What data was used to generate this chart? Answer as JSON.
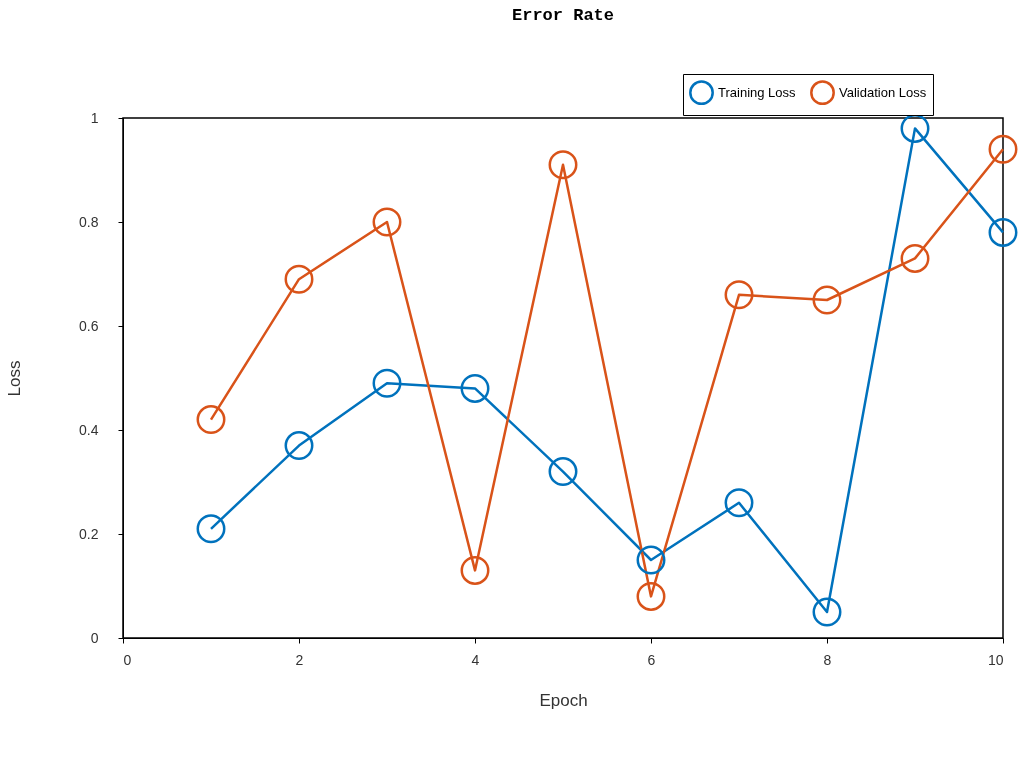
{
  "chart_data": {
    "type": "line",
    "title": "Error Rate",
    "xlabel": "Epoch",
    "ylabel": "Loss",
    "x": [
      1,
      2,
      3,
      4,
      5,
      6,
      7,
      8,
      9,
      10
    ],
    "series": [
      {
        "name": "Training Loss",
        "color": "#0072bd",
        "values": [
          0.21,
          0.37,
          0.49,
          0.48,
          0.32,
          0.15,
          0.26,
          0.05,
          0.98,
          0.78
        ]
      },
      {
        "name": "Validation Loss",
        "color": "#d95319",
        "values": [
          0.42,
          0.69,
          0.8,
          0.13,
          0.91,
          0.08,
          0.66,
          0.65,
          0.73,
          0.94
        ]
      }
    ],
    "xlim": [
      0,
      10
    ],
    "xticks": [
      0,
      2,
      4,
      6,
      8,
      10
    ],
    "ylim": [
      0,
      1
    ],
    "yticks": [
      0,
      0.2,
      0.4,
      0.6,
      0.8,
      1
    ],
    "grid": false,
    "legend": "top right",
    "marker": "circle",
    "line_style": "solid"
  }
}
